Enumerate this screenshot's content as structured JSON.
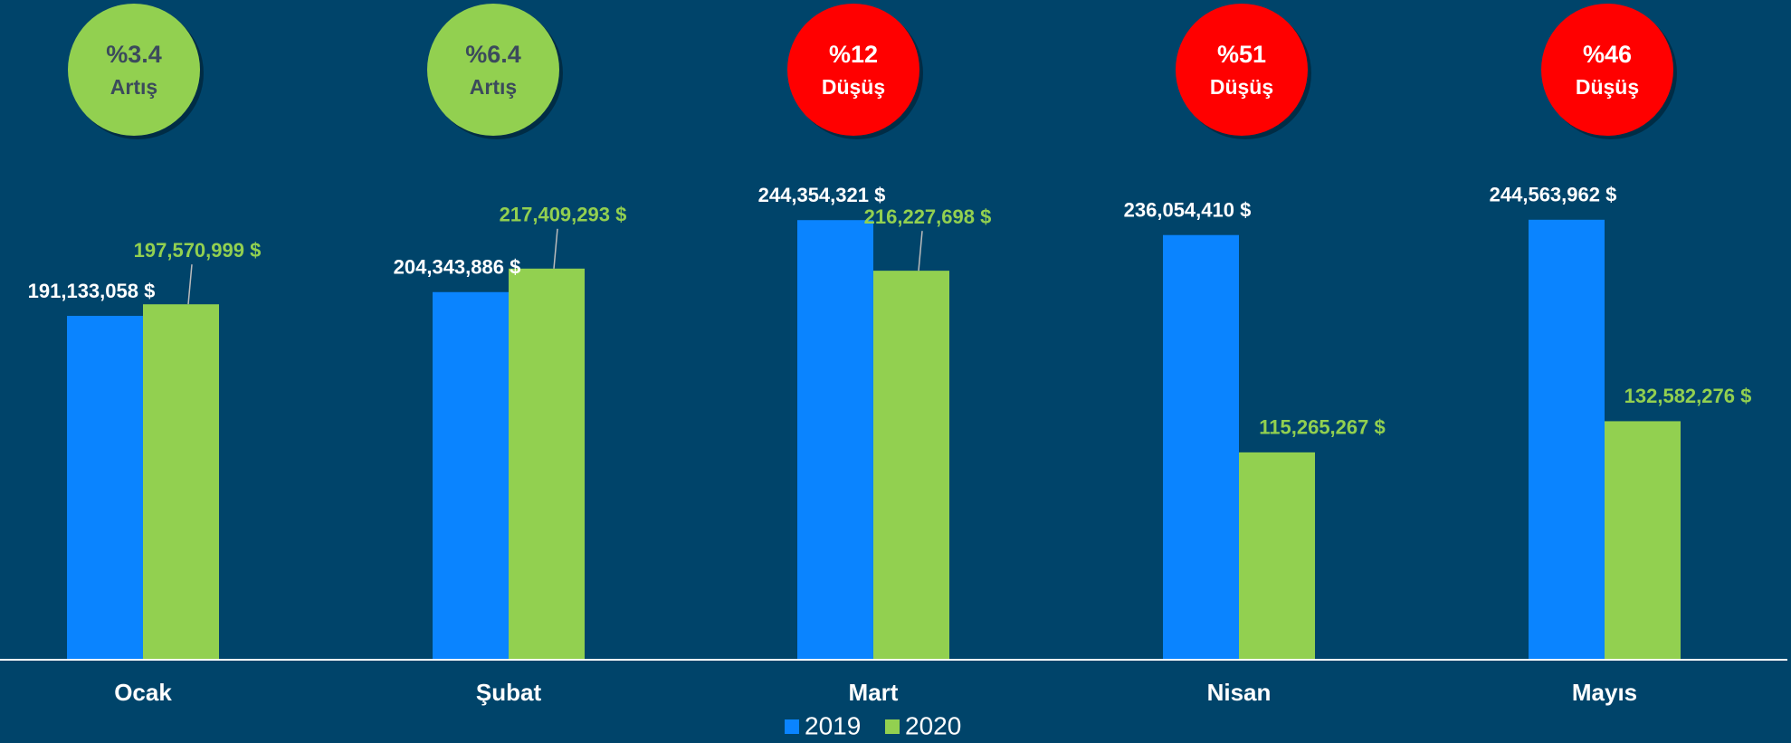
{
  "chart_data": {
    "type": "bar",
    "categories": [
      "Ocak",
      "Şubat",
      "Mart",
      "Nisan",
      "Mayıs"
    ],
    "series": [
      {
        "name": "2019",
        "color": "#0a84ff",
        "values": [
          191133058,
          204343886,
          244354321,
          236054410,
          244563962
        ],
        "value_labels": [
          "191,133,058 $",
          "204,343,886 $",
          "244,354,321 $",
          "236,054,410 $",
          "244,563,962 $"
        ]
      },
      {
        "name": "2020",
        "color": "#92d050",
        "values": [
          197570999,
          217409293,
          216227698,
          115265267,
          132582276
        ],
        "value_labels": [
          "197,570,999 $",
          "217,409,293 $",
          "216,227,698 $",
          "115,265,267 $",
          "132,582,276 $"
        ]
      }
    ],
    "ylim": [
      0,
      250000000
    ],
    "annotations": [
      {
        "text": "%3.4",
        "subtext": "Artış",
        "color": "#92d050",
        "text_color": "#3b4a5c"
      },
      {
        "text": "%6.4",
        "subtext": "Artış",
        "color": "#92d050",
        "text_color": "#3b4a5c"
      },
      {
        "text": "%12",
        "subtext": "Düşüş",
        "color": "#ff0000",
        "text_color": "#ffffff"
      },
      {
        "text": "%51",
        "subtext": "Düşüş",
        "color": "#ff0000",
        "text_color": "#ffffff"
      },
      {
        "text": "%46",
        "subtext": "Düşüş",
        "color": "#ff0000",
        "text_color": "#ffffff"
      }
    ],
    "legend": "bottom"
  }
}
